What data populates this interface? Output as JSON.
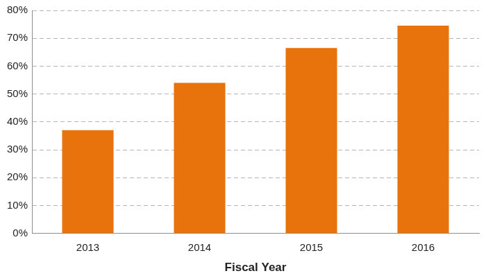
{
  "chart_data": {
    "type": "bar",
    "x_label": "Fiscal Year",
    "categories": [
      "2013",
      "2014",
      "2015",
      "2016"
    ],
    "values": [
      37,
      54,
      66.5,
      74.5
    ],
    "color": "#e8720c",
    "ylim": [
      0,
      80
    ],
    "yticks": [
      {
        "value": 0,
        "label": "0%"
      },
      {
        "value": 10,
        "label": "10%"
      },
      {
        "value": 20,
        "label": "20%"
      },
      {
        "value": 30,
        "label": "30%"
      },
      {
        "value": 40,
        "label": "40%"
      },
      {
        "value": 50,
        "label": "50%"
      },
      {
        "value": 60,
        "label": "60%"
      },
      {
        "value": 70,
        "label": "70%"
      },
      {
        "value": 80,
        "label": "80%"
      }
    ],
    "grid": true
  }
}
